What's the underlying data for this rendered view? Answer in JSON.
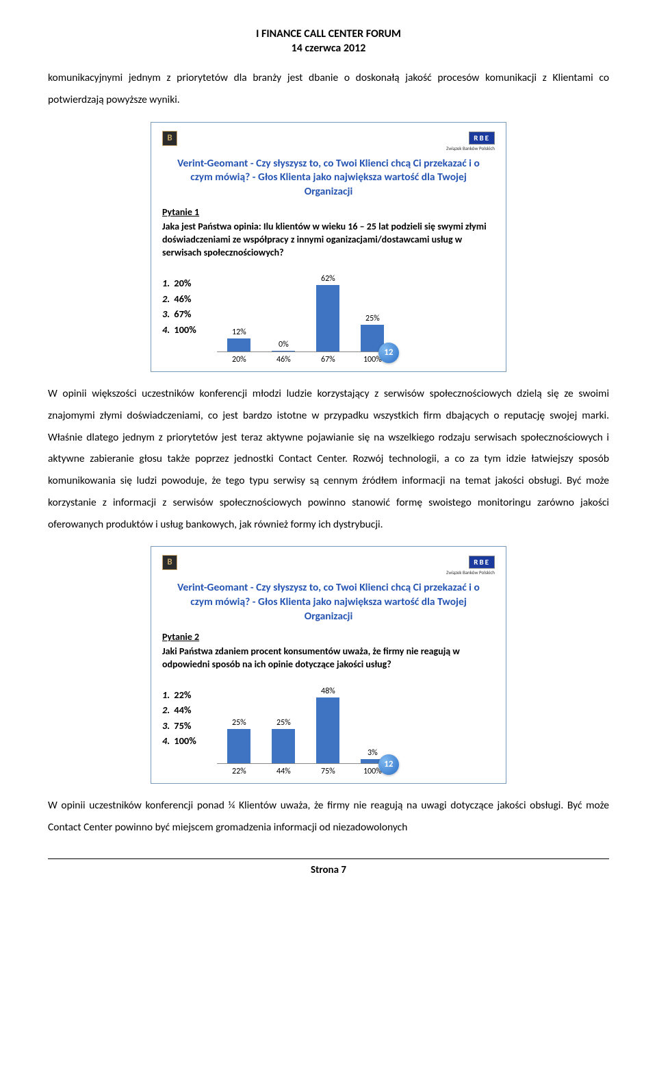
{
  "header": {
    "title": "I FINANCE CALL CENTER FORUM",
    "date": "14 czerwca 2012"
  },
  "para1": "komunikacyjnymi jednym z priorytetów dla branży jest dbanie o doskonałą jakość procesów komunikacji z Klientami co potwierdzają powyższe wyniki.",
  "slide_common": {
    "logo_left": "B",
    "logo_right": "RBE",
    "logo_right_sub": "Związek Banków Polskich",
    "title": "Verint-Geomant - Czy słyszysz to, co Twoi Klienci chcą Ci przekazać i o czym mówią?  - Głos Klienta jako największa wartość dla Twojej Organizacji"
  },
  "slide1": {
    "question_label": "Pytanie 1",
    "question_text": "Jaka jest Państwa opinia: Ilu klientów w wieku 16 – 25 lat podzieli się swymi złymi doświadczeniami ze współpracy z innymi oganizacjami/dostawcami usług w serwisach społecznościowych?",
    "answers": [
      "20%",
      "46%",
      "67%",
      "100%"
    ],
    "chart": {
      "type": "bar",
      "categories": [
        "20%",
        "46%",
        "67%",
        "100%"
      ],
      "values": [
        12,
        0,
        62,
        25
      ],
      "value_labels": [
        "12%",
        "0%",
        "62%",
        "25%"
      ],
      "bar_color": "#3e74c1",
      "ymax": 70,
      "label_fontsize": 12,
      "baseline_color": "#888888"
    },
    "badge": "12"
  },
  "para2": "W opinii większości uczestników konferencji młodzi ludzie korzystający z serwisów społecznościowych dzielą się ze swoimi znajomymi złymi doświadczeniami, co jest bardzo istotne w przypadku wszystkich firm dbających o reputację swojej marki. Właśnie dlatego jednym z priorytetów jest teraz aktywne pojawianie się na wszelkiego rodzaju serwisach społecznościowych i aktywne zabieranie głosu także poprzez jednostki Contact Center. Rozwój technologii, a co za tym idzie łatwiejszy sposób komunikowania się ludzi powoduje, że tego typu serwisy są cennym źródłem informacji na temat jakości obsługi. Być może korzystanie z informacji z serwisów społecznościowych powinno stanowić formę swoistego monitoringu zarówno jakości oferowanych produktów i usług bankowych, jak również formy ich dystrybucji.",
  "slide2": {
    "question_label": "Pytanie 2",
    "question_text": "Jaki Państwa zdaniem procent konsumentów uważa, że firmy nie reagują w odpowiedni sposób na ich opinie dotyczące jakości usług?",
    "answers": [
      "22%",
      "44%",
      "75%",
      "100%"
    ],
    "chart": {
      "type": "bar",
      "categories": [
        "22%",
        "44%",
        "75%",
        "100%"
      ],
      "values": [
        25,
        25,
        48,
        3
      ],
      "value_labels": [
        "25%",
        "25%",
        "48%",
        "3%"
      ],
      "bar_color": "#3e74c1",
      "ymax": 55,
      "label_fontsize": 12,
      "baseline_color": "#888888"
    },
    "badge": "12"
  },
  "para3": "W opinii uczestników konferencji ponad ¼ Klientów uważa, że firmy nie reagują na uwagi dotyczące jakości obsługi. Być może Contact Center powinno być miejscem gromadzenia informacji od niezadowolonych",
  "footer": {
    "page": "Strona 7"
  }
}
